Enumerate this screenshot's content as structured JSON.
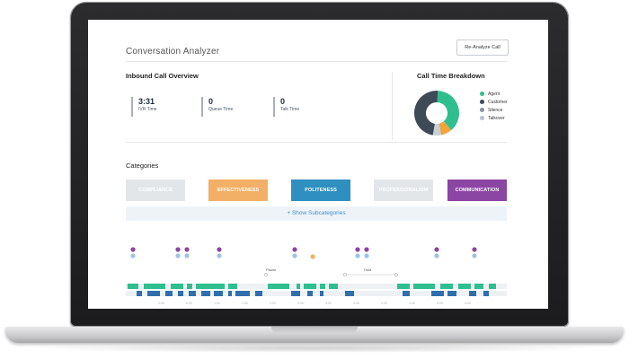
{
  "app": {
    "title": "Conversation Analyzer",
    "reanalyze_label": "Re-Analyze Call"
  },
  "overview": {
    "title": "Inbound Call Overview",
    "metrics": [
      {
        "value": "3:31",
        "label": "IVR Time"
      },
      {
        "value": "0",
        "label": "Queue Time"
      },
      {
        "value": "0",
        "label": "Talk Time"
      }
    ]
  },
  "breakdown": {
    "title": "Call Time Breakdown",
    "legend": [
      {
        "label": "Agent",
        "color": "#2fbf8f"
      },
      {
        "label": "Customer",
        "color": "#3e4a56"
      },
      {
        "label": "Silence",
        "color": "#8a939c"
      },
      {
        "label": "Talkover",
        "color": "#b8c0c8"
      }
    ],
    "donut": [
      {
        "name": "Agent",
        "fraction": 0.38,
        "color": "#2fbf8f"
      },
      {
        "name": "Talkover-orange",
        "fraction": 0.08,
        "color": "#f2a33a"
      },
      {
        "name": "Talkover",
        "fraction": 0.06,
        "color": "#c9d0d6"
      },
      {
        "name": "Customer",
        "fraction": 0.48,
        "color": "#3e4a56"
      }
    ]
  },
  "categories": {
    "title": "Categories",
    "items": [
      {
        "label": "COMPLIANCE",
        "color": "#e3e6e9"
      },
      {
        "label": "EFFECTIVENESS",
        "color": "#f2b066"
      },
      {
        "label": "POLITENESS",
        "color": "#2f8fc0"
      },
      {
        "label": "PROFESSIONALISM",
        "color": "#e3e6e9"
      },
      {
        "label": "COMMUNICATION",
        "color": "#8b45a3"
      }
    ],
    "show_subcategories": "+ Show Subcategories"
  },
  "timeline": {
    "markers": [
      "Pause",
      "Hold"
    ],
    "time_ticks": [
      "0:00",
      "0:30",
      "1:00",
      "1:30",
      "2:00",
      "2:30",
      "3:00",
      "3:30",
      "4:00",
      "4:30",
      "5:00",
      "5:30"
    ]
  }
}
